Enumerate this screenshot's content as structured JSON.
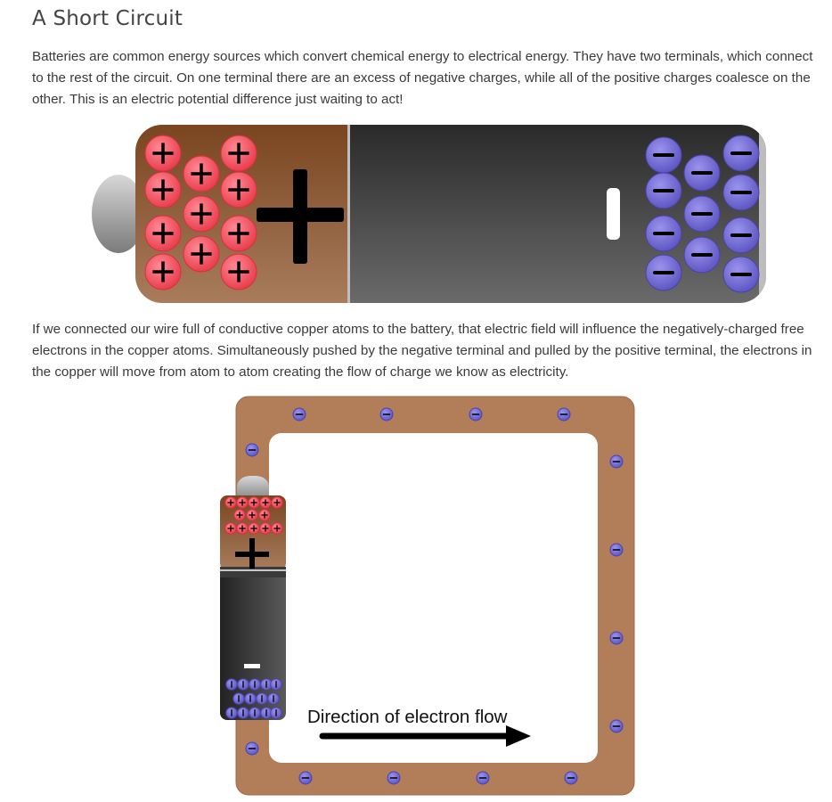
{
  "heading": "A Short Circuit",
  "paragraphs": [
    "Batteries are common energy sources which convert chemical energy to electrical energy. They have two terminals, which connect to the rest of the circuit. On one terminal there are an excess of negative charges, while all of the positive charges coalesce on the other. This is an electric potential difference just waiting to act!",
    "If we connected our wire full of conductive copper atoms to the battery, that electric field will influence the negatively-charged free electrons in the copper atoms. Simultaneously pushed by the negative terminal and pulled by the positive terminal, the electrons in the copper will move from atom to atom creating the flow of charge we know as electricity."
  ],
  "circuit_figure": {
    "flow_label": "Direction of electron flow"
  },
  "colors": {
    "positive_charge": "#f0505f",
    "negative_charge": "#6a62cc",
    "copper_wire": "#b27e5a",
    "battery_positive_end": "#8e5a34",
    "battery_body": "#3a3a3a"
  }
}
